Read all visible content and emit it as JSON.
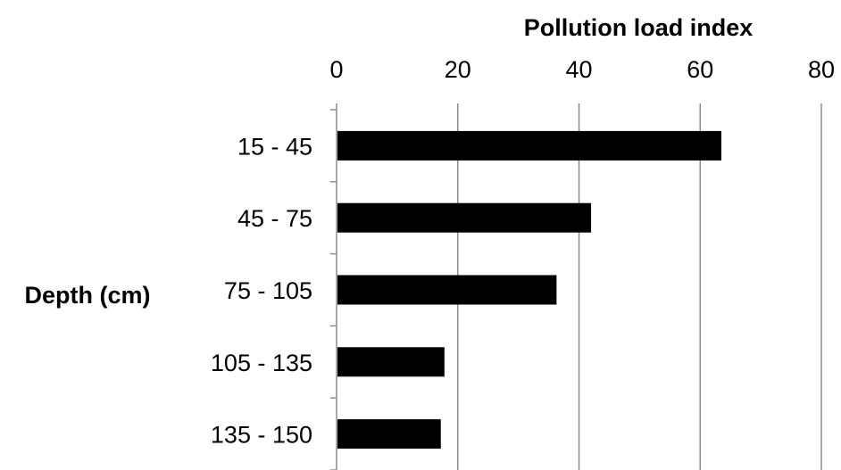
{
  "chart_data": {
    "type": "bar",
    "orientation": "horizontal",
    "xlabel": "Pollution load index",
    "ylabel": "Depth (cm)",
    "x_axis_position": "top",
    "xlim": [
      0,
      80
    ],
    "x_ticks": [
      "0",
      "20",
      "40",
      "60",
      "80"
    ],
    "categories": [
      "15 - 45",
      "45 - 75",
      "75 - 105",
      "105 - 135",
      "135 - 150"
    ],
    "values": [
      63.5,
      42,
      36.3,
      17.8,
      17.2
    ],
    "grid": "vertical",
    "legend": "none",
    "bar_color": "#000000"
  }
}
